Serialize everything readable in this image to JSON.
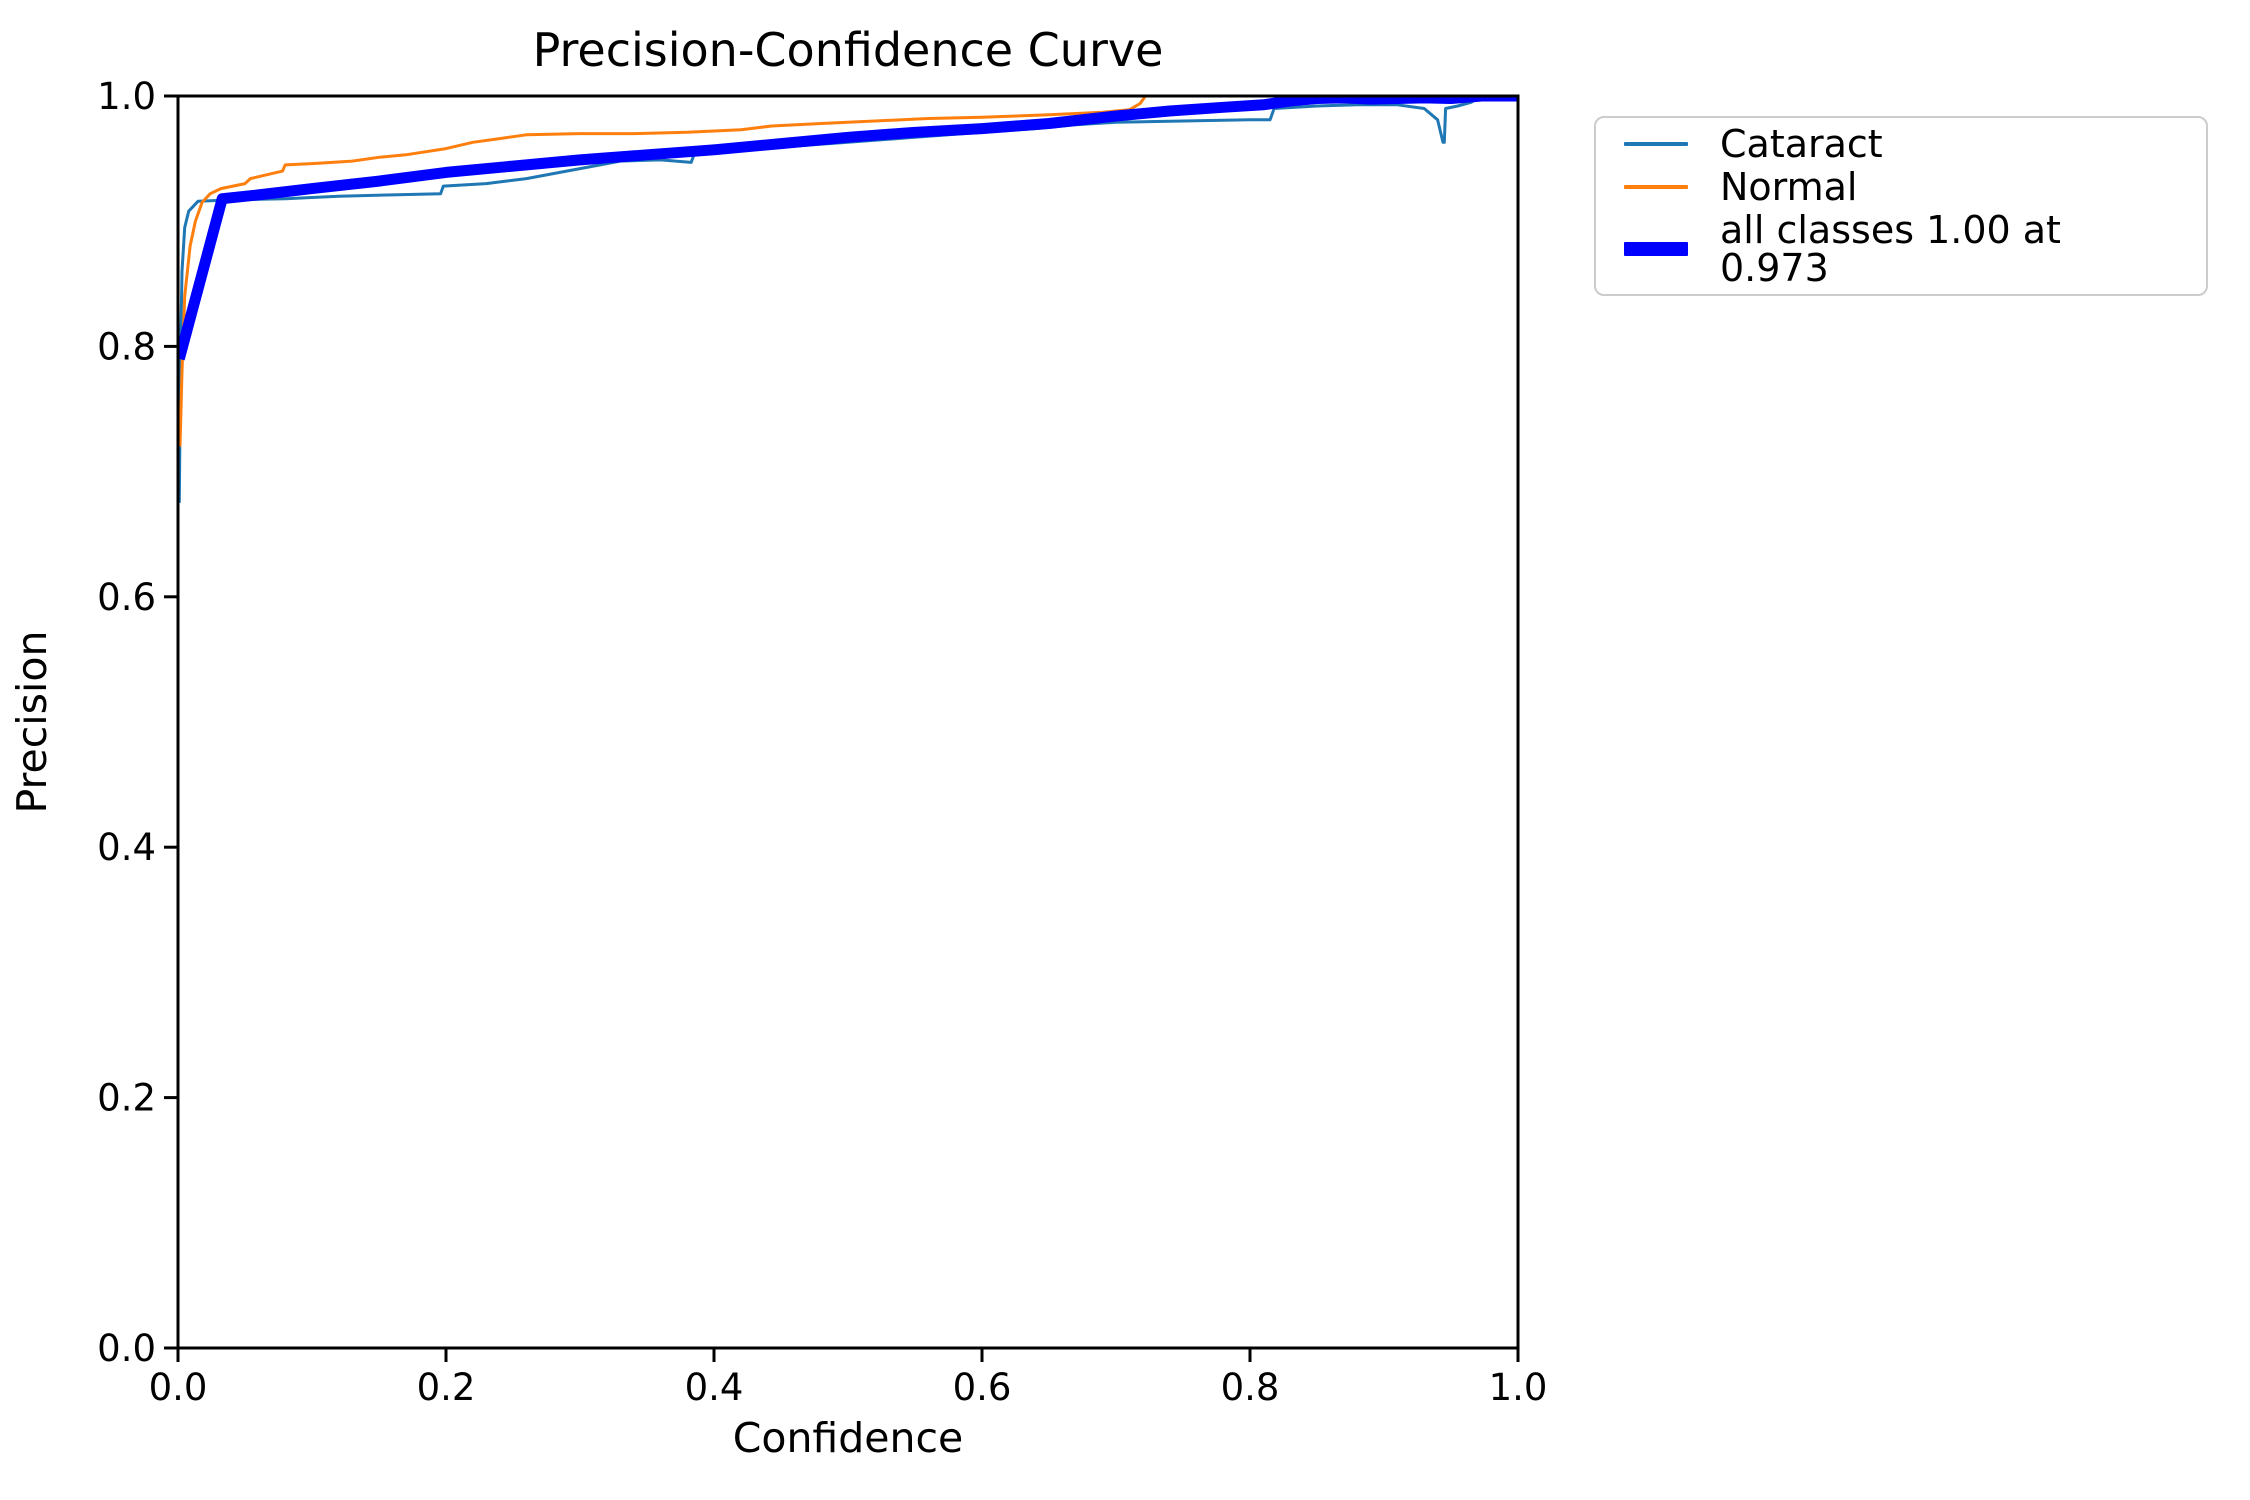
{
  "chart_data": {
    "type": "line",
    "title": "Precision-Confidence Curve",
    "xlabel": "Confidence",
    "ylabel": "Precision",
    "xlim": [
      0.0,
      1.0
    ],
    "ylim": [
      0.0,
      1.0
    ],
    "grid": false,
    "background": "#ffffff",
    "spine_color": "#000000",
    "x_ticks": {
      "values": [
        0.0,
        0.2,
        0.4,
        0.6,
        0.8,
        1.0
      ],
      "labels": [
        "0.0",
        "0.2",
        "0.4",
        "0.6",
        "0.8",
        "1.0"
      ]
    },
    "y_ticks": {
      "values": [
        0.0,
        0.2,
        0.4,
        0.6,
        0.8,
        1.0
      ],
      "labels": [
        "0.0",
        "0.2",
        "0.4",
        "0.6",
        "0.8",
        "1.0"
      ]
    },
    "legend": {
      "position": "outside-upper-right",
      "entries": [
        "Cataract",
        "Normal",
        "all classes 1.00 at 0.973"
      ]
    },
    "series": [
      {
        "name": "Cataract",
        "legend_label": "Cataract",
        "color": "#1f77b4",
        "line_width": 3,
        "points": [
          [
            0.001,
            0.675
          ],
          [
            0.002,
            0.8
          ],
          [
            0.003,
            0.86
          ],
          [
            0.005,
            0.895
          ],
          [
            0.008,
            0.908
          ],
          [
            0.015,
            0.916
          ],
          [
            0.04,
            0.917
          ],
          [
            0.08,
            0.918
          ],
          [
            0.12,
            0.92
          ],
          [
            0.16,
            0.921
          ],
          [
            0.196,
            0.922
          ],
          [
            0.198,
            0.928
          ],
          [
            0.23,
            0.93
          ],
          [
            0.26,
            0.934
          ],
          [
            0.3,
            0.942
          ],
          [
            0.33,
            0.948
          ],
          [
            0.36,
            0.949
          ],
          [
            0.383,
            0.947
          ],
          [
            0.386,
            0.956
          ],
          [
            0.42,
            0.957
          ],
          [
            0.46,
            0.96
          ],
          [
            0.5,
            0.963
          ],
          [
            0.55,
            0.967
          ],
          [
            0.6,
            0.971
          ],
          [
            0.64,
            0.974
          ],
          [
            0.67,
            0.977
          ],
          [
            0.7,
            0.979
          ],
          [
            0.75,
            0.98
          ],
          [
            0.8,
            0.981
          ],
          [
            0.815,
            0.981
          ],
          [
            0.818,
            0.99
          ],
          [
            0.85,
            0.992
          ],
          [
            0.88,
            0.993
          ],
          [
            0.91,
            0.993
          ],
          [
            0.93,
            0.99
          ],
          [
            0.94,
            0.981
          ],
          [
            0.944,
            0.963
          ],
          [
            0.945,
            0.963
          ],
          [
            0.946,
            0.99
          ],
          [
            0.955,
            0.992
          ],
          [
            0.965,
            0.995
          ],
          [
            0.973,
            1.0
          ],
          [
            1.0,
            1.0
          ]
        ]
      },
      {
        "name": "Normal",
        "legend_label": "Normal",
        "color": "#ff7f0e",
        "line_width": 3,
        "points": [
          [
            0.0015,
            0.72
          ],
          [
            0.003,
            0.78
          ],
          [
            0.005,
            0.84
          ],
          [
            0.009,
            0.88
          ],
          [
            0.013,
            0.9
          ],
          [
            0.018,
            0.915
          ],
          [
            0.024,
            0.922
          ],
          [
            0.032,
            0.926
          ],
          [
            0.05,
            0.93
          ],
          [
            0.054,
            0.934
          ],
          [
            0.07,
            0.938
          ],
          [
            0.078,
            0.94
          ],
          [
            0.08,
            0.945
          ],
          [
            0.1,
            0.946
          ],
          [
            0.13,
            0.948
          ],
          [
            0.15,
            0.951
          ],
          [
            0.17,
            0.953
          ],
          [
            0.2,
            0.958
          ],
          [
            0.22,
            0.963
          ],
          [
            0.24,
            0.966
          ],
          [
            0.26,
            0.969
          ],
          [
            0.3,
            0.97
          ],
          [
            0.34,
            0.97
          ],
          [
            0.38,
            0.971
          ],
          [
            0.42,
            0.973
          ],
          [
            0.443,
            0.976
          ],
          [
            0.48,
            0.978
          ],
          [
            0.52,
            0.98
          ],
          [
            0.56,
            0.982
          ],
          [
            0.6,
            0.983
          ],
          [
            0.65,
            0.985
          ],
          [
            0.69,
            0.987
          ],
          [
            0.71,
            0.989
          ],
          [
            0.718,
            0.994
          ],
          [
            0.722,
            1.0
          ],
          [
            1.0,
            1.0
          ]
        ]
      },
      {
        "name": "all classes",
        "legend_label": "all classes 1.00 at 0.973",
        "color": "#0000ff",
        "line_width": 11,
        "points": [
          [
            0.001,
            0.79
          ],
          [
            0.033,
            0.918
          ],
          [
            0.06,
            0.921
          ],
          [
            0.1,
            0.926
          ],
          [
            0.15,
            0.932
          ],
          [
            0.2,
            0.939
          ],
          [
            0.25,
            0.944
          ],
          [
            0.3,
            0.949
          ],
          [
            0.35,
            0.953
          ],
          [
            0.4,
            0.957
          ],
          [
            0.45,
            0.962
          ],
          [
            0.5,
            0.967
          ],
          [
            0.55,
            0.971
          ],
          [
            0.6,
            0.974
          ],
          [
            0.65,
            0.978
          ],
          [
            0.7,
            0.984
          ],
          [
            0.74,
            0.988
          ],
          [
            0.78,
            0.991
          ],
          [
            0.81,
            0.993
          ],
          [
            0.83,
            0.996
          ],
          [
            0.85,
            0.998
          ],
          [
            0.87,
            0.9985
          ],
          [
            0.89,
            0.9975
          ],
          [
            0.91,
            0.998
          ],
          [
            0.93,
            0.9985
          ],
          [
            0.95,
            0.998
          ],
          [
            0.973,
            1.0
          ],
          [
            1.0,
            1.0
          ]
        ]
      }
    ]
  }
}
